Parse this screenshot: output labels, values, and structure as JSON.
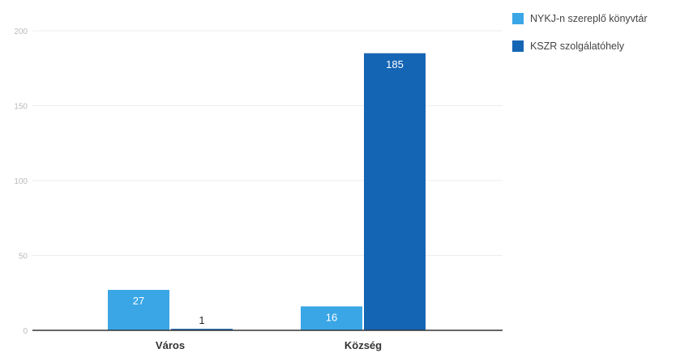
{
  "colors": {
    "nyk": "#3aa6e6",
    "kszr": "#1565b5",
    "axis": "#333333",
    "grid": "#eeeeee",
    "tick_text": "#bbbbbb",
    "label_light": "#2a2a2a",
    "label_dark": "#ffffff"
  },
  "chart_data": {
    "type": "bar",
    "categories": [
      "Város",
      "Község"
    ],
    "series": [
      {
        "name": "NYKJ-n szereplő könyvtár",
        "values": [
          27,
          16
        ]
      },
      {
        "name": "KSZR szolgálatóhely",
        "values": [
          1,
          185
        ]
      }
    ],
    "ylim": [
      0,
      200
    ],
    "grid": true,
    "legend": "top-right"
  }
}
